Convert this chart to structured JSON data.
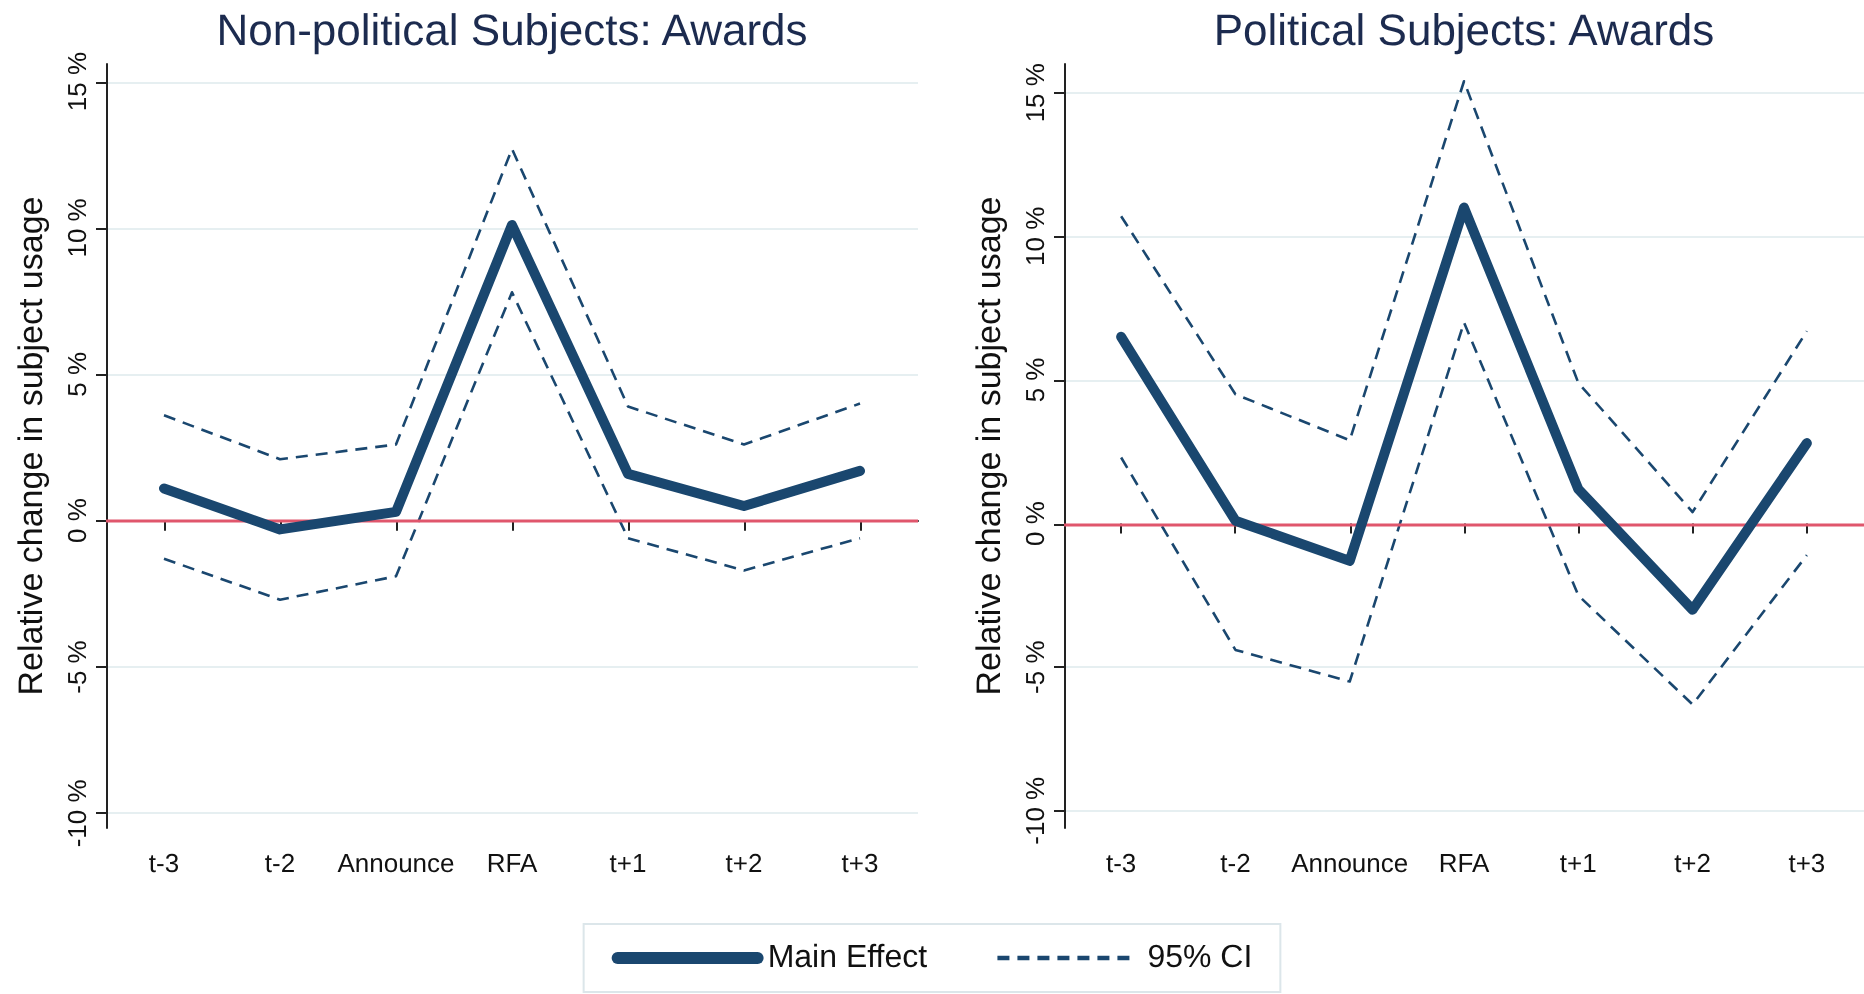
{
  "chart_data": [
    {
      "type": "line",
      "title": "Non-political Subjects: Awards",
      "ylabel": "Relative change in subject usage",
      "categories": [
        "t-3",
        "t-2",
        "Announce",
        "RFA",
        "t+1",
        "t+2",
        "t+3"
      ],
      "series": [
        {
          "name": "Main Effect",
          "color": "#1a476f",
          "line_style": "solid",
          "values": [
            1.1,
            -0.3,
            0.3,
            10.1,
            1.6,
            0.5,
            1.7
          ]
        },
        {
          "name": "95% CI",
          "color": "#1a476f",
          "line_style": "dashed",
          "values": [
            3.6,
            2.1,
            2.6,
            12.7,
            3.9,
            2.6,
            4.0
          ]
        },
        {
          "color": "#1a476f",
          "line_style": "dashed",
          "values": [
            -1.3,
            -2.7,
            -1.9,
            7.8,
            -0.6,
            -1.7,
            -0.6
          ]
        }
      ],
      "ylim": [
        -10.5,
        15.6
      ],
      "yticks": [
        {
          "value": -10,
          "label": "-10 %"
        },
        {
          "value": -5,
          "label": "-5 %"
        },
        {
          "value": 0,
          "label": "0 %"
        },
        {
          "value": 5,
          "label": "5 %"
        },
        {
          "value": 10,
          "label": "10 %"
        },
        {
          "value": 15,
          "label": "15 %"
        }
      ],
      "ref_lines": [
        {
          "axis": "y",
          "value": 0,
          "color": "#e0566c"
        }
      ],
      "grid": "y",
      "legend": "bottom"
    },
    {
      "type": "line",
      "title": "Political Subjects: Awards",
      "ylabel": "Relative change in subject usage",
      "categories": [
        "t-3",
        "t-2",
        "Announce",
        "RFA",
        "t+1",
        "t+2",
        "t+3"
      ],
      "series": [
        {
          "name": "Main Effect",
          "color": "#1a476f",
          "line_style": "solid",
          "values": [
            6.5,
            0.1,
            -1.3,
            11.0,
            1.2,
            -3.0,
            2.8
          ]
        },
        {
          "name": "95% CI",
          "color": "#1a476f",
          "line_style": "dashed",
          "values": [
            10.7,
            4.5,
            2.9,
            15.4,
            4.9,
            0.4,
            6.7
          ]
        },
        {
          "color": "#1a476f",
          "line_style": "dashed",
          "values": [
            2.3,
            -4.4,
            -5.5,
            7.0,
            -2.5,
            -6.3,
            -1.1
          ]
        }
      ],
      "ylim": [
        -10.6,
        16
      ],
      "yticks": [
        {
          "value": -10,
          "label": "-10 %"
        },
        {
          "value": -5,
          "label": "-5 %"
        },
        {
          "value": 0,
          "label": "0 %"
        },
        {
          "value": 5,
          "label": "5 %"
        },
        {
          "value": 10,
          "label": "10 %"
        },
        {
          "value": 15,
          "label": "15 %"
        }
      ],
      "ref_lines": [
        {
          "axis": "y",
          "value": 0,
          "color": "#e0566c"
        }
      ],
      "grid": "y"
    }
  ]
}
